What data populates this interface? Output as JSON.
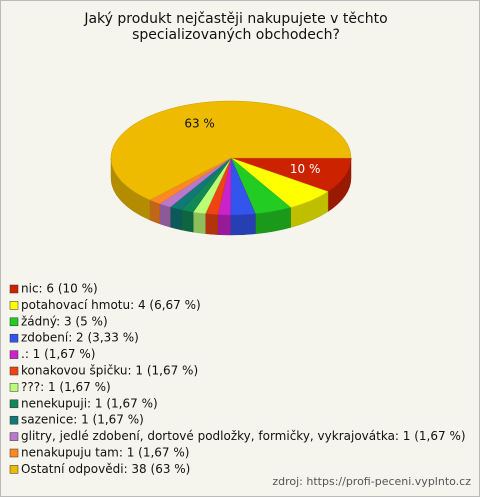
{
  "chart_data": {
    "type": "pie3d",
    "title": "Jaký produkt nejčastěji nakupujete v těchto specializovaných obchodech?",
    "categories": [
      "nic: 6 (10 %)",
      "potahovací hmotu: 4 (6,67 %)",
      "žádný: 3 (5 %)",
      "zdobení: 2 (3,33 %)",
      ".: 1 (1,67 %)",
      "konakovou špičku: 1 (1,67 %)",
      "???: 1 (1,67 %)",
      "nenekupuji: 1 (1,67 %)",
      "sazenice: 1 (1,67 %)",
      "glitry, jedlé zdobení, dortové podložky, formičky, vykrajovátka: 1 (1,67 %)",
      "nenakupuju tam: 1 (1,67 %)",
      "Ostatní odpovědi: 38 (63 %)"
    ],
    "values": [
      10,
      6.67,
      5,
      3.33,
      1.67,
      1.67,
      1.67,
      1.67,
      1.67,
      1.67,
      1.67,
      63
    ],
    "value_labels": [
      "10 %",
      null,
      null,
      null,
      null,
      null,
      null,
      null,
      null,
      null,
      null,
      "63 %"
    ],
    "colors": [
      "#cc2200",
      "#ffff00",
      "#22cc22",
      "#3355ee",
      "#cc22cc",
      "#ee4411",
      "#bbff77",
      "#118855",
      "#117777",
      "#bb77cc",
      "#ff8822",
      "#eebb00"
    ],
    "source": "zdroj: https://profi-peceni.vyplnto.cz"
  }
}
